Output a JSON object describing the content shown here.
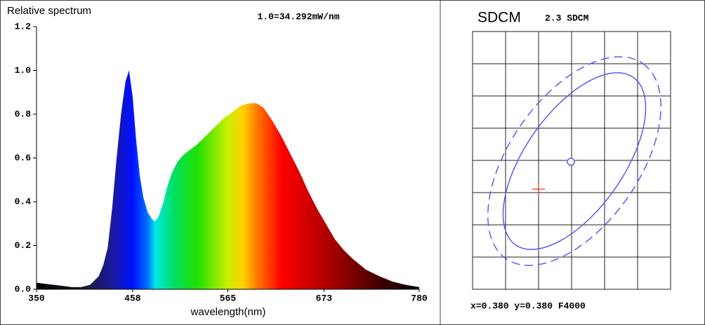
{
  "chart_data": [
    {
      "type": "area",
      "title": "Relative spectrum",
      "annotation": "1.0=34.292mW/nm",
      "x_label": "wavelength(nm)",
      "x": [
        350,
        360,
        370,
        380,
        390,
        400,
        410,
        415,
        420,
        425,
        430,
        435,
        440,
        445,
        450,
        454,
        458,
        462,
        466,
        470,
        475,
        480,
        483,
        487,
        492,
        497,
        502,
        508,
        514,
        520,
        530,
        540,
        550,
        560,
        570,
        580,
        590,
        597,
        605,
        615,
        625,
        635,
        645,
        655,
        665,
        675,
        685,
        695,
        705,
        720,
        735,
        750,
        765,
        780
      ],
      "values": [
        0.03,
        0.025,
        0.02,
        0.015,
        0.01,
        0.01,
        0.02,
        0.04,
        0.06,
        0.11,
        0.19,
        0.37,
        0.6,
        0.8,
        0.95,
        1.0,
        0.88,
        0.68,
        0.52,
        0.42,
        0.35,
        0.32,
        0.31,
        0.33,
        0.39,
        0.47,
        0.53,
        0.58,
        0.61,
        0.63,
        0.66,
        0.7,
        0.74,
        0.78,
        0.81,
        0.84,
        0.85,
        0.85,
        0.83,
        0.77,
        0.7,
        0.62,
        0.54,
        0.45,
        0.37,
        0.3,
        0.23,
        0.18,
        0.14,
        0.09,
        0.06,
        0.035,
        0.02,
        0.01
      ],
      "xlim": [
        350,
        780
      ],
      "xticks": [
        350,
        458,
        565,
        673,
        780
      ],
      "ylim": [
        0,
        1.2
      ],
      "yticks": [
        {
          "value": 0,
          "label": "0.0"
        },
        0.2,
        0.4,
        0.6,
        0.8,
        {
          "value": 1,
          "label": "1.0"
        },
        1.2
      ]
    },
    {
      "type": "sdcm",
      "title": "SDCM",
      "subtitle": "2.3 SDCM",
      "caption": "x=0.380 y=0.380 F4000"
    }
  ]
}
